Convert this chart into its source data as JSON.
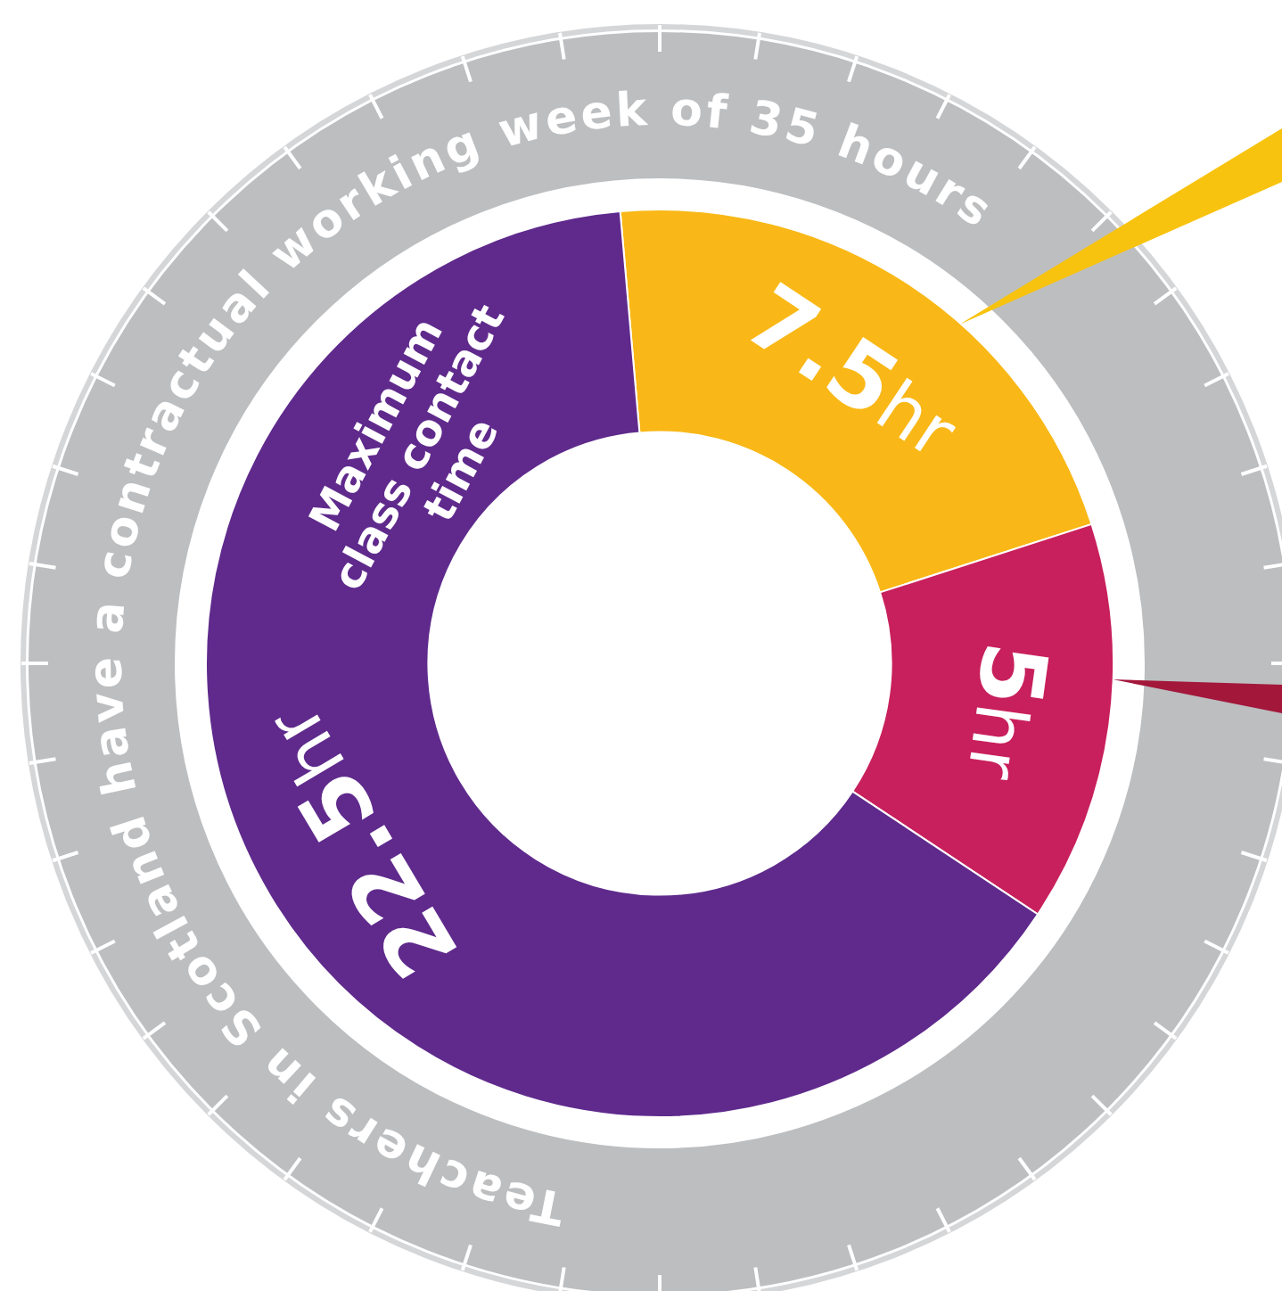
{
  "chart_data": {
    "type": "donut",
    "title": "Teachers in Scotland have a contractual working week of 35 hours",
    "categories": [
      null,
      null,
      null
    ],
    "values": [
      7.5,
      5,
      22.5
    ],
    "colors": [
      "#f9b817",
      "#c8205c",
      "#5f2a8c"
    ],
    "value_labels": [
      "7.5hr",
      "5hr",
      "22.5hr"
    ],
    "annotations": [
      "Maximum class contact time"
    ],
    "legend": false
  }
}
